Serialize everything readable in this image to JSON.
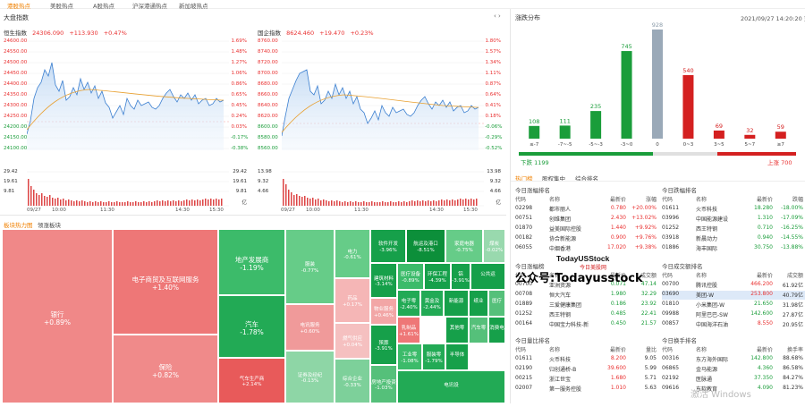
{
  "nav": [
    "港股热点",
    "美股热点",
    "A股热点",
    "沪深港通热点",
    "新加坡热点"
  ],
  "big_index": {
    "title": "大盘指数"
  },
  "hsi": {
    "name": "恒生指数",
    "value": "24306.090",
    "change": "+113.930",
    "pct": "+0.47%",
    "left_ticks": [
      "24600.00",
      "24550.00",
      "24500.00",
      "24450.00",
      "24400.00",
      "24350.00",
      "24300.00",
      "24250.00",
      "24200.00",
      "24150.00",
      "24100.00"
    ],
    "right_ticks": [
      "1.69%",
      "1.48%",
      "1.27%",
      "1.06%",
      "0.86%",
      "0.65%",
      "0.45%",
      "0.24%",
      "0.03%",
      "-0.17%",
      "-0.38%"
    ],
    "vol_left": [
      "29.42",
      "19.61",
      "9.81"
    ],
    "vol_right": [
      "29.42",
      "19.61",
      "9.81",
      "亿"
    ],
    "times": [
      "09/27",
      "10:00",
      "11:30",
      "14:30",
      "15:30"
    ]
  },
  "ssei": {
    "name": "国企指数",
    "value": "8624.460",
    "change": "+19.470",
    "pct": "+0.23%",
    "left_ticks": [
      "8760.00",
      "8740.00",
      "8720.00",
      "8700.00",
      "8680.00",
      "8660.00",
      "8640.00",
      "8620.00",
      "8600.00",
      "8580.00",
      "8560.00"
    ],
    "right_ticks": [
      "1.80%",
      "1.57%",
      "1.34%",
      "1.11%",
      "0.87%",
      "0.64%",
      "0.41%",
      "0.18%",
      "-0.06%",
      "-0.29%",
      "-0.52%"
    ],
    "vol_left": [
      "13.98",
      "9.32",
      "4.66"
    ],
    "vol_right": [
      "13.98",
      "9.32",
      "4.66",
      "亿"
    ],
    "times": [
      "09/27",
      "10:00",
      "11:30",
      "14:30",
      "15:30"
    ]
  },
  "heatmap": {
    "tabs": [
      "板块热力图",
      "领涨板块"
    ],
    "cells": [
      {
        "name": "银行",
        "pct": "+0.89%",
        "color": "#f08888"
      },
      {
        "name": "电子商贸及互联网服务",
        "pct": "+1.40%",
        "color": "#ee7777"
      },
      {
        "name": "保险",
        "pct": "+0.82%",
        "color": "#f08a8a"
      },
      {
        "name": "地产发展商",
        "pct": "-1.19%",
        "color": "#3cbb6a"
      },
      {
        "name": "汽车",
        "pct": "-1.78%",
        "color": "#22aa55"
      },
      {
        "name": "气车生产商",
        "pct": "+2.14%",
        "color": "#e85a5a"
      },
      {
        "name": "服装",
        "pct": "-0.77%",
        "color": "#66cc88"
      },
      {
        "name": "电讯服务",
        "pct": "+0.60%",
        "color": "#f09a9a"
      },
      {
        "name": "证券及经纪",
        "pct": "-0.13%",
        "color": "#8ed6a6"
      },
      {
        "name": "电力",
        "pct": "-0.61%",
        "color": "#66cc88"
      },
      {
        "name": "药品",
        "pct": "+0.17%",
        "color": "#f5b6b6"
      },
      {
        "name": "燃气供应",
        "pct": "+0.04%",
        "color": "#f5c0c0"
      },
      {
        "name": "综合企业",
        "pct": "-0.33%",
        "color": "#7dd09a"
      },
      {
        "name": "软件开发",
        "pct": "-3.96%",
        "color": "#16a04a"
      },
      {
        "name": "建筑材料",
        "pct": "-3.14%",
        "color": "#16a04a"
      },
      {
        "name": "物业服务",
        "pct": "+0.46%",
        "color": "#f2a6a6"
      },
      {
        "name": "殡葬",
        "pct": "-3.91%",
        "color": "#16a04a"
      },
      {
        "name": "房地产投资",
        "pct": "-1.03%",
        "color": "#55c07a"
      },
      {
        "name": "航运及港口",
        "pct": "-8.51%",
        "color": "#0c8f3a"
      },
      {
        "name": "家庭电器",
        "pct": "-0.75%",
        "color": "#66cc88"
      },
      {
        "name": "煤炭",
        "pct": "-0.02%",
        "color": "#99d9ae"
      },
      {
        "name": "医疗设备",
        "pct": "-0.89%",
        "color": "#3cbb6a"
      },
      {
        "name": "环保工程",
        "pct": "-4.39%",
        "color": "#16a04a"
      },
      {
        "name": "铝",
        "pct": "-3.91%",
        "color": "#16a04a"
      },
      {
        "name": "电子零",
        "pct": "-2.40%",
        "color": "#22aa55"
      },
      {
        "name": "黄金及",
        "pct": "-2.44%",
        "color": "#22aa55"
      },
      {
        "name": "乳制品",
        "pct": "+1.61%",
        "color": "#ee7777"
      },
      {
        "name": "工业零",
        "pct": "-1.08%",
        "color": "#3cbb6a"
      },
      {
        "name": "服装零",
        "pct": "-1.79%",
        "color": "#22aa55"
      },
      {
        "name": "公共运",
        "pct": "",
        "color": "#16a04a"
      },
      {
        "name": "新能源",
        "pct": "",
        "color": "#16a04a"
      },
      {
        "name": "纸业",
        "pct": "",
        "color": "#16a04a"
      },
      {
        "name": "医疗",
        "pct": "",
        "color": "#55c07a"
      },
      {
        "name": "其他零",
        "pct": "",
        "color": "#16a04a"
      },
      {
        "name": "汽车零",
        "pct": "",
        "color": "#55c07a"
      },
      {
        "name": "消费电",
        "pct": "",
        "color": "#16a04a"
      },
      {
        "name": "半导体",
        "pct": "",
        "color": "#16a04a"
      },
      {
        "name": "电讯设",
        "pct": "",
        "color": "#22aa55"
      }
    ]
  },
  "dist": {
    "title": "涨跌分布",
    "datetime": "2021/09/27 14:20:20",
    "extra": "更新",
    "down_label": "下跌 1199",
    "up_label": "上涨 700",
    "logo_line1": "TodayUSStock",
    "logo_line2": "今日美股网"
  },
  "chart_data": {
    "type": "bar",
    "categories": [
      "≤-7",
      "-7~-5",
      "-5~-3",
      "-3~0",
      "0",
      "0~3",
      "3~5",
      "5~7",
      "≥7"
    ],
    "values": [
      108,
      111,
      235,
      745,
      928,
      540,
      69,
      32,
      59
    ],
    "colors": [
      "#1a9d3a",
      "#1a9d3a",
      "#1a9d3a",
      "#1a9d3a",
      "#9aa9b8",
      "#d42020",
      "#d42020",
      "#d42020",
      "#d42020"
    ]
  },
  "hot": {
    "tabs": [
      "热门榜",
      "股权集中",
      "综合排名"
    ],
    "watermark": "公众号:Todayusstock",
    "tables": [
      {
        "title": "今日涨幅排名",
        "headers": [
          "代码",
          "名称",
          "最新价",
          "涨幅"
        ],
        "rows": [
          [
            "02298",
            "都市丽人",
            "0.780",
            "+20.00%"
          ],
          [
            "00751",
            "创维集团",
            "2.430",
            "+13.02%"
          ],
          [
            "01870",
            "益美国际控股",
            "1.440",
            "+9.92%"
          ],
          [
            "00182",
            "协合新能源",
            "0.900",
            "+9.76%"
          ],
          [
            "06055",
            "中烟香港",
            "17.020",
            "+9.38%"
          ]
        ],
        "tone": "red"
      },
      {
        "title": "今日跌幅排名",
        "headers": [
          "代码",
          "名称",
          "最新价",
          "跌幅"
        ],
        "rows": [
          [
            "01611",
            "火币科技",
            "18.280",
            "-18.00%"
          ],
          [
            "03996",
            "中国能源建设",
            "1.310",
            "-17.09%"
          ],
          [
            "01252",
            "西王特钢",
            "0.710",
            "-16.25%"
          ],
          [
            "03918",
            "新晨动力",
            "0.940",
            "-14.55%"
          ],
          [
            "01886",
            "海丰国际",
            "30.750",
            "-13.88%"
          ]
        ],
        "tone": "green"
      },
      {
        "title": "今日涨幅榜",
        "headers": [
          "代码",
          "名称",
          "最新价",
          "成交额"
        ],
        "rows": [
          [
            "00700",
            "",
            "0.071",
            "47.14"
          ],
          [
            "00708",
            "恒大汽车",
            "1.980",
            "32.29"
          ],
          [
            "01889",
            "三爱健康集团",
            "0.186",
            "23.92"
          ],
          [
            "01252",
            "西王特钢",
            "0.485",
            "22.41"
          ],
          [
            "00164",
            "中国宝力科技-新",
            "0.450",
            "21.57"
          ]
        ],
        "tone": "green"
      },
      {
        "title": "今日成交额排名",
        "headers": [
          "代码",
          "名称",
          "最新价",
          "成交额"
        ],
        "rows": [
          [
            "00700",
            "腾讯控股",
            "466.200",
            "61.92亿"
          ],
          [
            "03690",
            "美团-W",
            "253.800",
            "40.79亿"
          ],
          [
            "01810",
            "小米集团-W",
            "21.650",
            "31.98亿"
          ],
          [
            "09988",
            "阿里巴巴-SW",
            "142.600",
            "27.87亿"
          ],
          [
            "00857",
            "中国海洋石油",
            "8.550",
            "20.95亿"
          ]
        ],
        "tone": "red"
      },
      {
        "title": "今日量比排名",
        "headers": [
          "代码",
          "名称",
          "最新价",
          "量比"
        ],
        "rows": [
          [
            "01611",
            "火币科技",
            "8.200",
            "9.05"
          ],
          [
            "02190",
            "归创通桥-B",
            "39.600",
            "5.99"
          ],
          [
            "00215",
            "浙江世宝",
            "1.680",
            "5.71"
          ],
          [
            "02007",
            "第一服务控股",
            "1.010",
            "5.63"
          ],
          [
            "",
            "",
            "",
            ""
          ]
        ],
        "tone": "red"
      },
      {
        "title": "今日换手排名",
        "headers": [
          "代码",
          "名称",
          "最新价",
          "换手率"
        ],
        "rows": [
          [
            "00316",
            "东方海外国际",
            "142.800",
            "88.68%"
          ],
          [
            "06865",
            "金马能源",
            "4.360",
            "86.58%"
          ],
          [
            "02192",
            "医脉通",
            "37.350",
            "84.27%"
          ],
          [
            "09616",
            "东软教育",
            "4.090",
            "81.23%"
          ],
          [
            "",
            "",
            "",
            ""
          ]
        ],
        "tone": "green"
      }
    ],
    "row0_name": "亚洲资源",
    "selected_row": "美团-W"
  },
  "windows_watermark": "激活 Windows"
}
